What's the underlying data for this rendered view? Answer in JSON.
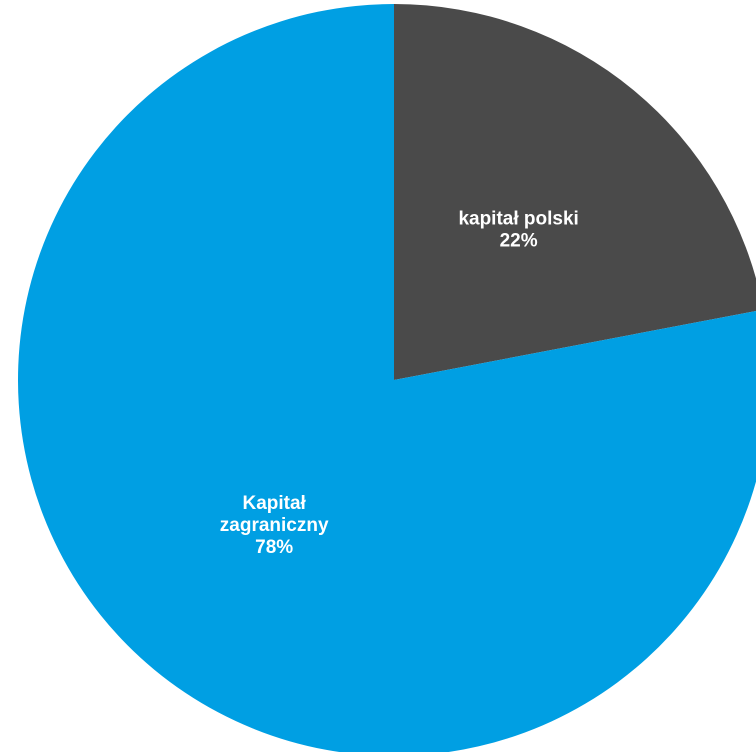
{
  "chart_data": {
    "type": "pie",
    "start_angle_deg": 0,
    "direction": "clockwise",
    "slices": [
      {
        "label_lines": [
          "kapitał polski",
          "22%"
        ],
        "value": 22,
        "color": "#4a4a4a"
      },
      {
        "label_lines": [
          "Kapitał",
          "zagraniczny",
          "78%"
        ],
        "value": 78,
        "color": "#009fe3"
      }
    ]
  }
}
